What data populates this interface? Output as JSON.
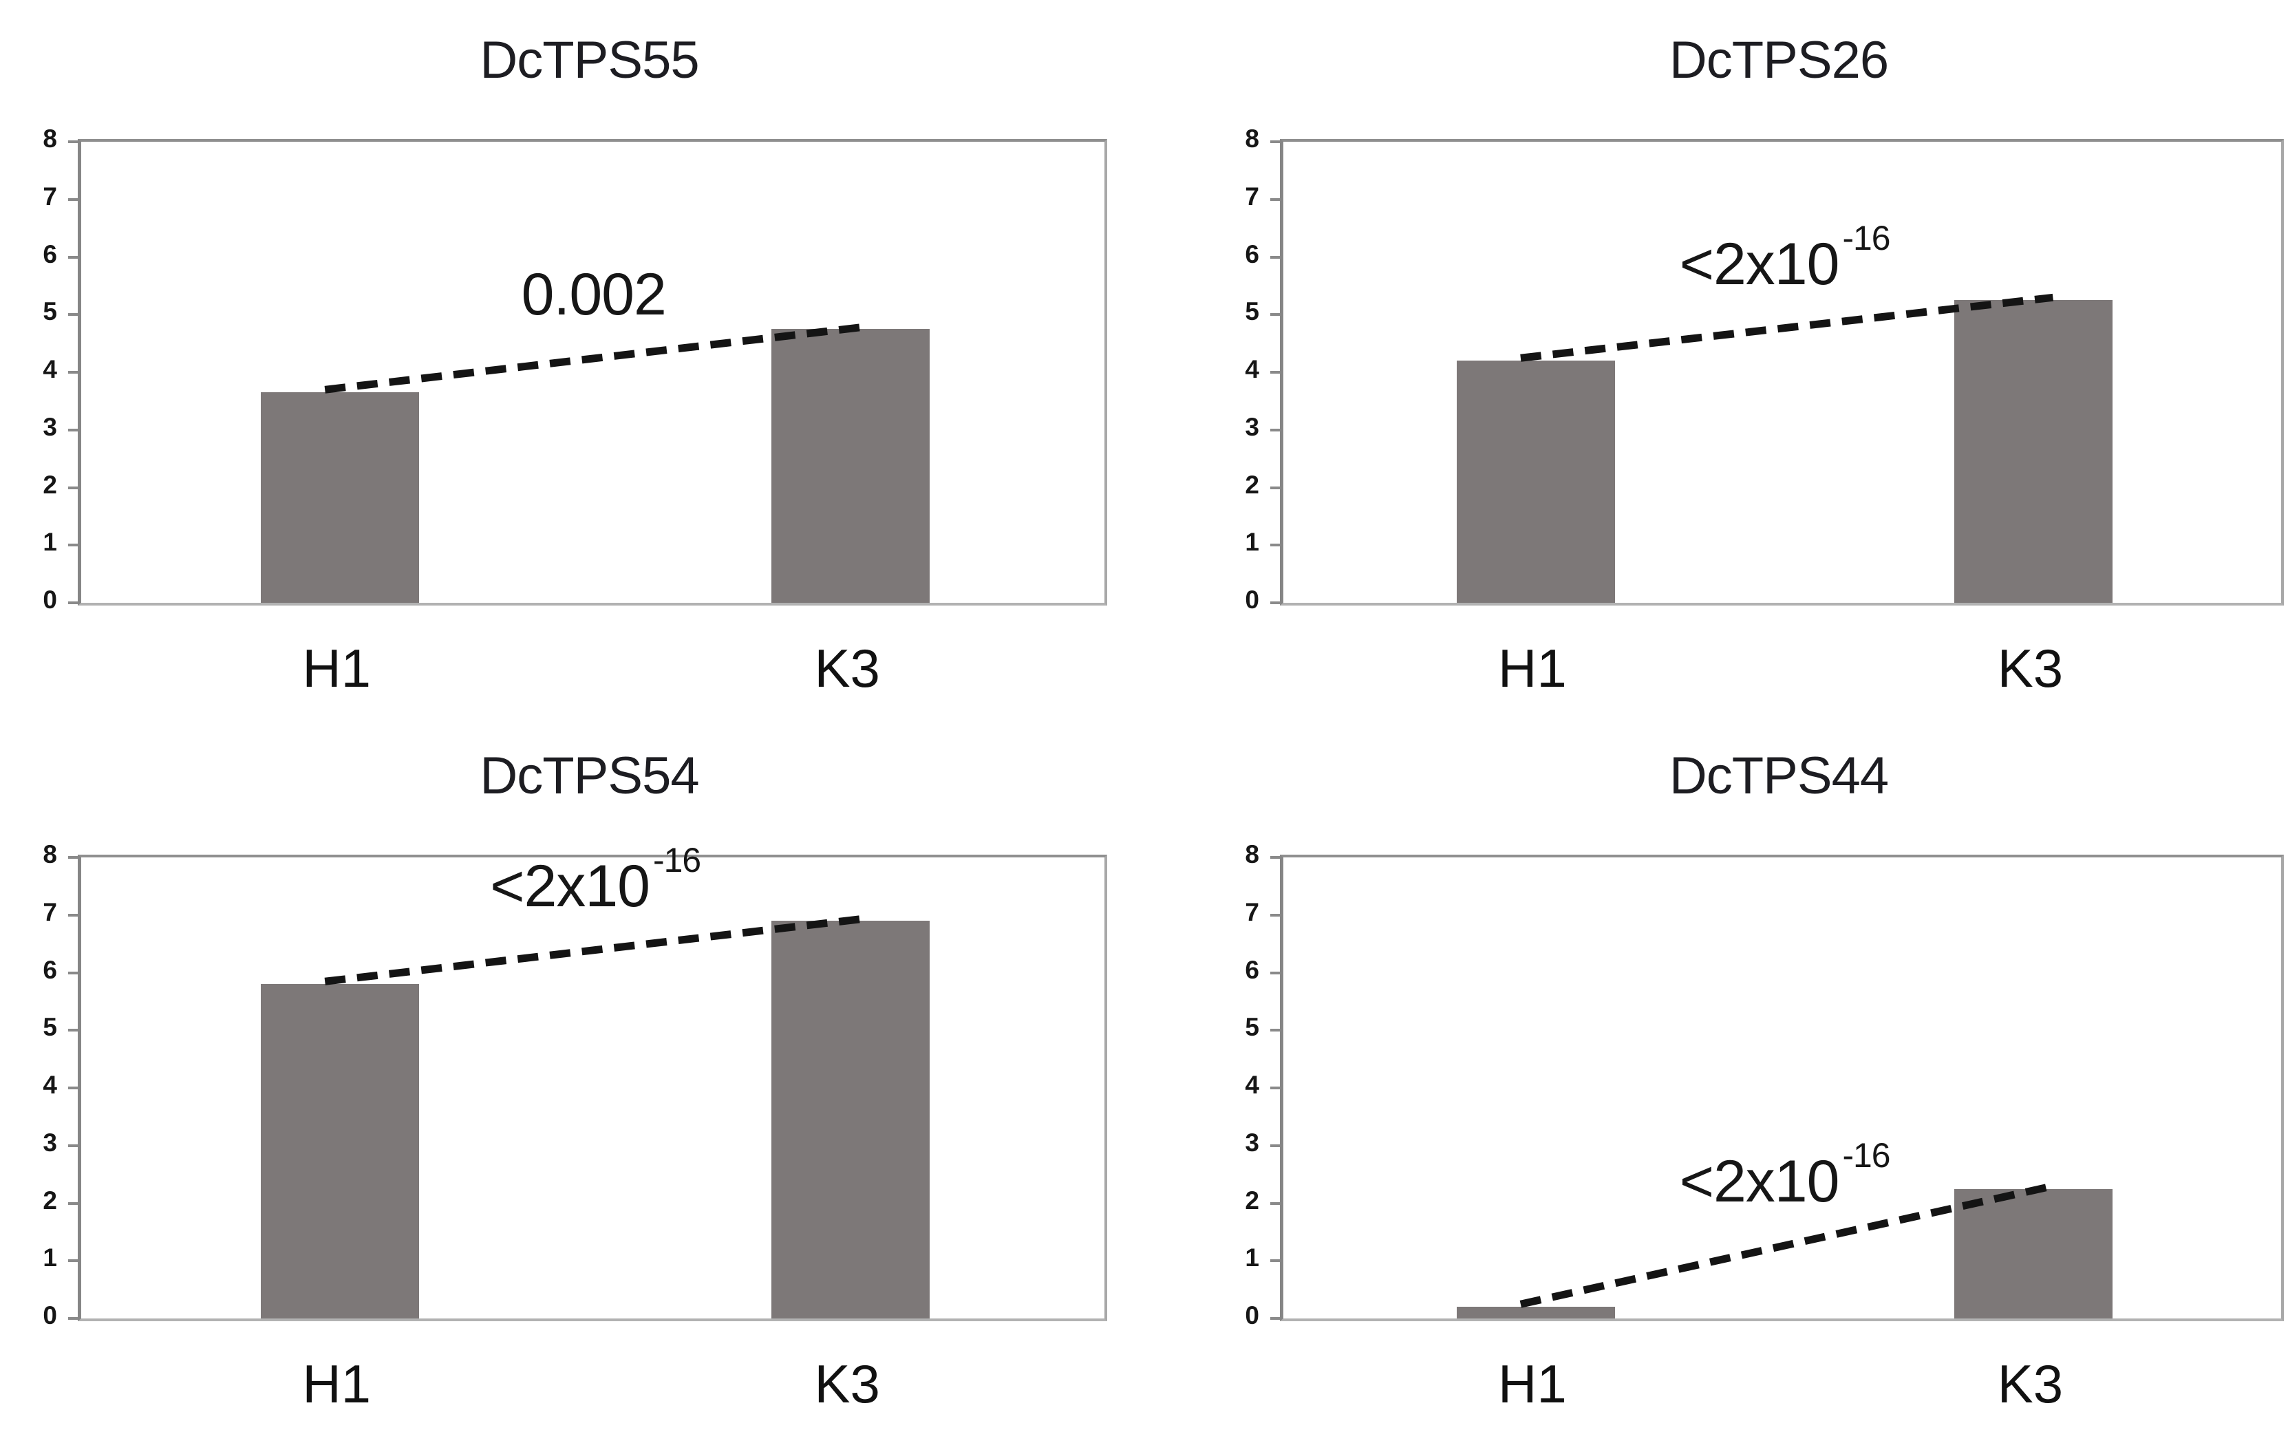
{
  "figure": {
    "background": "#ffffff",
    "bar_color": "#7d7878",
    "axis_color": "#8f8f8f",
    "tick_mark_color": "#8a8a8a",
    "dash_line_color": "#141414",
    "text_color": "#1d1d22"
  },
  "chart_data": [
    {
      "type": "bar",
      "title": "DcTPS55",
      "categories": [
        "H1",
        "K3"
      ],
      "values": [
        3.65,
        4.75
      ],
      "ylim": [
        0,
        8
      ],
      "yticks": [
        0,
        1,
        2,
        3,
        4,
        5,
        6,
        7,
        8
      ],
      "grid": false,
      "legend": false,
      "annotation": {
        "text": "0.002",
        "base": "0.002",
        "superscript": ""
      }
    },
    {
      "type": "bar",
      "title": "DcTPS26",
      "categories": [
        "H1",
        "K3"
      ],
      "values": [
        4.2,
        5.25
      ],
      "ylim": [
        0,
        8
      ],
      "yticks": [
        0,
        1,
        2,
        3,
        4,
        5,
        6,
        7,
        8
      ],
      "grid": false,
      "legend": false,
      "annotation": {
        "text": "<2x10^-16",
        "base": "<2x10",
        "superscript": "-16"
      }
    },
    {
      "type": "bar",
      "title": "DcTPS54",
      "categories": [
        "H1",
        "K3"
      ],
      "values": [
        5.8,
        6.9
      ],
      "ylim": [
        0,
        8
      ],
      "yticks": [
        0,
        1,
        2,
        3,
        4,
        5,
        6,
        7,
        8
      ],
      "grid": false,
      "legend": false,
      "annotation": {
        "text": "<2x10^-16",
        "base": "<2x10",
        "superscript": "-16"
      }
    },
    {
      "type": "bar",
      "title": "DcTPS44",
      "categories": [
        "H1",
        "K3"
      ],
      "values": [
        0.2,
        2.25
      ],
      "ylim": [
        0,
        8
      ],
      "yticks": [
        0,
        1,
        2,
        3,
        4,
        5,
        6,
        7,
        8
      ],
      "grid": false,
      "legend": false,
      "annotation": {
        "text": "<2x10^-16",
        "base": "<2x10",
        "superscript": "-16"
      }
    }
  ]
}
